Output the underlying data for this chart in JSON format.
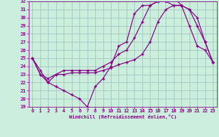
{
  "xlabel": "Windchill (Refroidissement éolien,°C)",
  "bg_color": "#cceedd",
  "line_color": "#880088",
  "grid_color": "#99bbbb",
  "ylim": [
    19,
    32
  ],
  "xlim": [
    -0.5,
    23.5
  ],
  "yticks": [
    19,
    20,
    21,
    22,
    23,
    24,
    25,
    26,
    27,
    28,
    29,
    30,
    31,
    32
  ],
  "xticks": [
    0,
    1,
    2,
    3,
    4,
    5,
    6,
    7,
    8,
    9,
    10,
    11,
    12,
    13,
    14,
    15,
    16,
    17,
    18,
    19,
    20,
    21,
    22,
    23
  ],
  "line1_x": [
    0,
    1,
    2,
    3,
    4,
    5,
    6,
    7,
    8,
    9,
    10,
    11,
    12,
    13,
    14,
    15,
    16,
    17,
    18,
    19,
    20,
    21,
    22,
    23
  ],
  "line1_y": [
    25.0,
    23.5,
    22.0,
    21.5,
    21.0,
    20.5,
    20.0,
    19.0,
    21.5,
    22.5,
    24.0,
    26.5,
    27.0,
    30.5,
    31.5,
    31.5,
    32.0,
    32.0,
    31.5,
    31.5,
    29.0,
    26.5,
    26.0,
    24.5
  ],
  "line2_x": [
    0,
    1,
    2,
    3,
    4,
    5,
    6,
    7,
    8,
    9,
    10,
    11,
    12,
    13,
    14,
    15,
    16,
    17,
    18,
    19,
    20,
    21,
    22,
    23
  ],
  "line2_y": [
    25.0,
    23.0,
    22.0,
    23.0,
    23.0,
    23.2,
    23.2,
    23.2,
    23.2,
    23.5,
    23.8,
    24.2,
    24.5,
    24.8,
    25.5,
    27.0,
    29.5,
    31.0,
    31.5,
    31.5,
    31.0,
    30.0,
    27.0,
    24.5
  ],
  "line3_x": [
    0,
    1,
    2,
    3,
    4,
    5,
    6,
    7,
    8,
    9,
    10,
    11,
    12,
    13,
    14,
    15,
    16,
    17,
    18,
    19,
    20,
    21,
    22,
    23
  ],
  "line3_y": [
    25.0,
    23.0,
    22.5,
    23.0,
    23.5,
    23.5,
    23.5,
    23.5,
    23.5,
    24.0,
    24.5,
    25.5,
    26.0,
    27.5,
    29.5,
    31.5,
    32.0,
    32.5,
    32.5,
    31.5,
    31.0,
    29.0,
    27.0,
    24.5
  ]
}
